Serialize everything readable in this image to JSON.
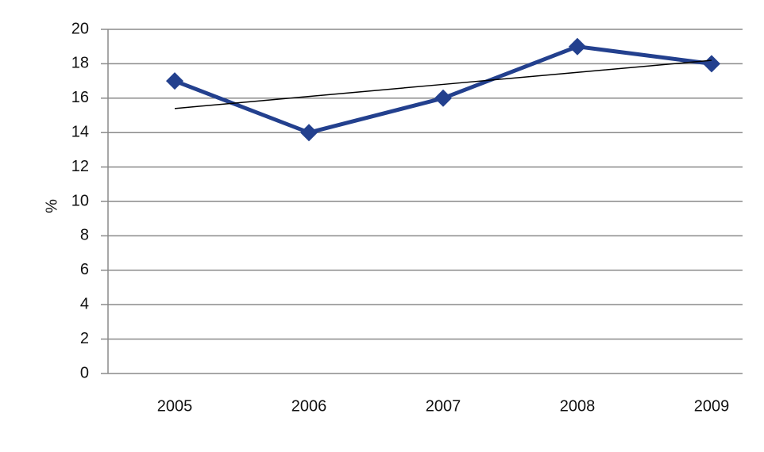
{
  "chart_data": {
    "type": "line",
    "y_label": "%",
    "categories": [
      "2005",
      "2006",
      "2007",
      "2008",
      "2009"
    ],
    "series": [
      {
        "color": "#23408e",
        "values": [
          17,
          14,
          16,
          19,
          18
        ]
      }
    ],
    "trendline": {
      "color": "#000000",
      "values": [
        15.4,
        16.1,
        16.8,
        17.5,
        18.2
      ]
    },
    "ylim": [
      0,
      20
    ],
    "yticks": [
      0,
      2,
      4,
      6,
      8,
      10,
      12,
      14,
      16,
      18,
      20
    ],
    "grid": true
  }
}
